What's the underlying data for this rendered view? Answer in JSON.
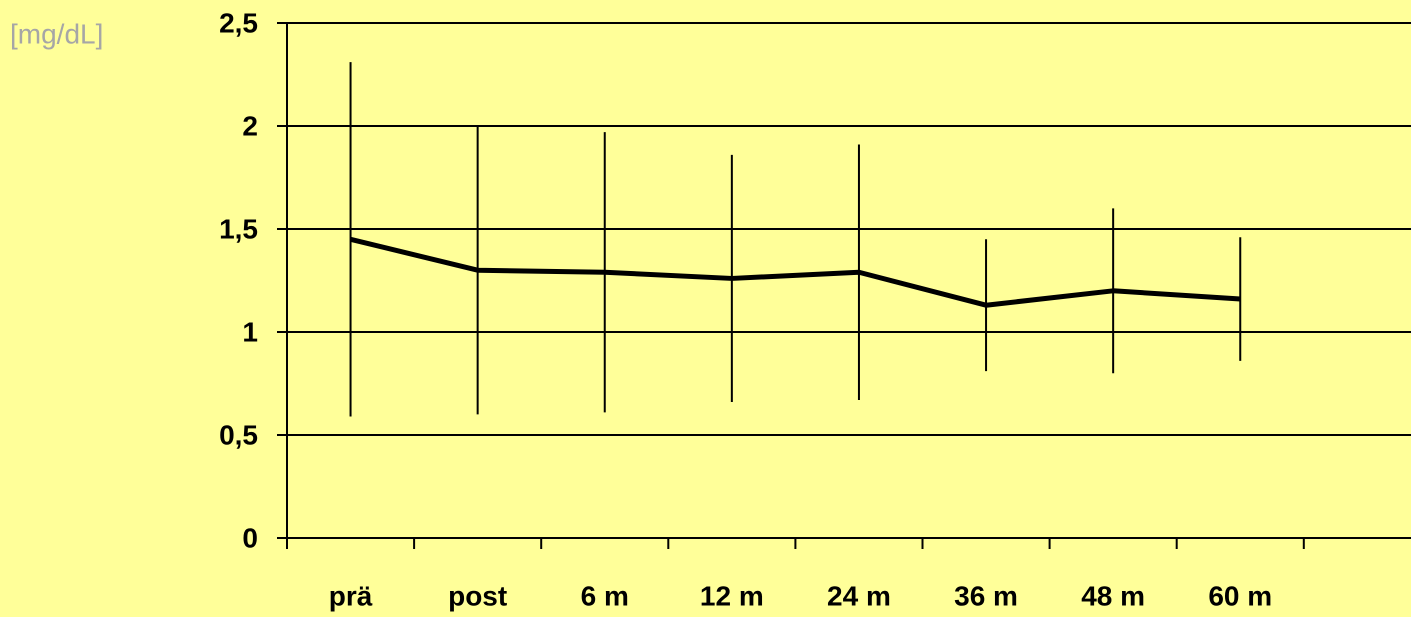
{
  "chart_data": {
    "type": "line",
    "y_label": "[mg/dL]",
    "categories": [
      "prä",
      "post",
      "6 m",
      "12 m",
      "24 m",
      "36 m",
      "48 m",
      "60 m"
    ],
    "values": [
      1.45,
      1.3,
      1.29,
      1.26,
      1.29,
      1.13,
      1.2,
      1.16
    ],
    "errors": [
      0.86,
      0.7,
      0.68,
      0.6,
      0.62,
      0.32,
      0.4,
      0.3
    ],
    "color": "#000000",
    "ylim": [
      0,
      2.5
    ],
    "yticks": [
      0,
      {
        "value": 0.5,
        "label": "0,5"
      },
      1,
      {
        "value": 1.5,
        "label": "1,5"
      },
      2,
      {
        "value": 2.5,
        "label": "2,5"
      }
    ],
    "grid": true
  }
}
